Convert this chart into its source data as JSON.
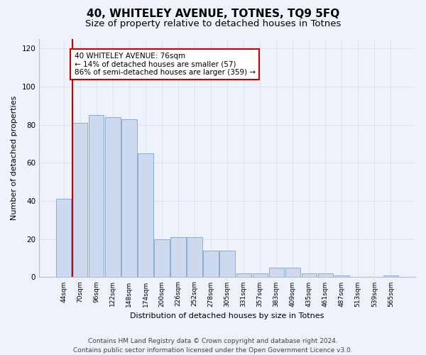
{
  "title1": "40, WHITELEY AVENUE, TOTNES, TQ9 5FQ",
  "title2": "Size of property relative to detached houses in Totnes",
  "xlabel": "Distribution of detached houses by size in Totnes",
  "ylabel": "Number of detached properties",
  "categories": [
    "44sqm",
    "70sqm",
    "96sqm",
    "122sqm",
    "148sqm",
    "174sqm",
    "200sqm",
    "226sqm",
    "252sqm",
    "278sqm",
    "305sqm",
    "331sqm",
    "357sqm",
    "383sqm",
    "409sqm",
    "435sqm",
    "461sqm",
    "487sqm",
    "513sqm",
    "539sqm",
    "565sqm"
  ],
  "values": [
    41,
    81,
    85,
    84,
    83,
    65,
    20,
    21,
    21,
    14,
    14,
    2,
    2,
    5,
    5,
    2,
    2,
    1,
    0,
    0,
    1
  ],
  "bar_color": "#ccd9ee",
  "bar_edge_color": "#8aadd4",
  "annotation_text": "40 WHITELEY AVENUE: 76sqm\n← 14% of detached houses are smaller (57)\n86% of semi-detached houses are larger (359) →",
  "annotation_box_color": "#ffffff",
  "annotation_box_edge_color": "#cc0000",
  "vline_color": "#cc0000",
  "vline_x_index": 1,
  "ylim": [
    0,
    125
  ],
  "yticks": [
    0,
    20,
    40,
    60,
    80,
    100,
    120
  ],
  "grid_color": "#dde4f0",
  "background_color": "#eef2fa",
  "footer_text": "Contains HM Land Registry data © Crown copyright and database right 2024.\nContains public sector information licensed under the Open Government Licence v3.0.",
  "title1_fontsize": 11,
  "title2_fontsize": 9.5,
  "xlabel_fontsize": 8,
  "ylabel_fontsize": 8,
  "annotation_fontsize": 7.5,
  "footer_fontsize": 6.5
}
